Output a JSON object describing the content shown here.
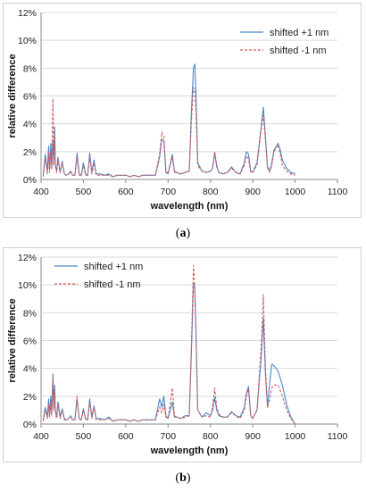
{
  "captions": [
    {
      "open": "(",
      "letter": "a",
      "close": ")"
    },
    {
      "open": "(",
      "letter": "b",
      "close": ")"
    }
  ],
  "chart_data": [
    {
      "type": "line",
      "xlabel": "wavelength (nm)",
      "ylabel": "relative difference",
      "xlim": [
        400,
        1100
      ],
      "ylim": [
        0,
        12
      ],
      "xticks": [
        "400",
        "500",
        "600",
        "700",
        "800",
        "900",
        "1000",
        "1100"
      ],
      "yticks": [
        "0%",
        "2%",
        "4%",
        "6%",
        "8%",
        "10%",
        "12%"
      ],
      "grid": "horizontal",
      "legend_position": "top-right",
      "series": [
        {
          "name": "shifted +1 nm",
          "color": "#4a86c5",
          "style": "solid",
          "x": [
            405,
            410,
            415,
            418,
            420,
            423,
            425,
            428,
            430,
            432,
            434,
            437,
            440,
            445,
            450,
            455,
            460,
            465,
            470,
            475,
            480,
            485,
            490,
            495,
            500,
            505,
            510,
            515,
            520,
            525,
            530,
            540,
            550,
            560,
            570,
            580,
            590,
            600,
            610,
            620,
            630,
            640,
            650,
            660,
            670,
            680,
            685,
            690,
            695,
            700,
            710,
            715,
            720,
            730,
            740,
            750,
            755,
            760,
            763,
            766,
            770,
            780,
            790,
            800,
            805,
            810,
            815,
            820,
            830,
            840,
            850,
            860,
            870,
            880,
            885,
            890,
            895,
            900,
            910,
            920,
            925,
            930,
            935,
            940,
            945,
            950,
            960,
            965,
            970,
            980,
            990,
            1000
          ],
          "y": [
            0.3,
            1.8,
            0.6,
            2.4,
            0.7,
            2.6,
            0.9,
            2.8,
            1.2,
            3.8,
            1.0,
            0.6,
            1.6,
            0.5,
            1.3,
            0.4,
            0.3,
            0.4,
            0.6,
            0.3,
            0.3,
            1.9,
            0.4,
            0.3,
            1.2,
            0.4,
            0.3,
            1.9,
            0.5,
            1.4,
            0.4,
            0.4,
            0.3,
            0.4,
            0.2,
            0.3,
            0.3,
            0.3,
            0.2,
            0.3,
            0.2,
            0.3,
            0.3,
            0.3,
            0.3,
            1.6,
            2.9,
            2.8,
            0.5,
            0.4,
            1.8,
            0.6,
            0.5,
            0.4,
            0.5,
            0.6,
            4.8,
            8.0,
            8.3,
            6.0,
            1.2,
            0.6,
            0.5,
            0.6,
            0.8,
            1.9,
            0.9,
            0.5,
            0.4,
            0.5,
            0.9,
            0.5,
            0.4,
            1.2,
            2.0,
            1.8,
            0.6,
            0.5,
            1.2,
            3.8,
            5.2,
            3.0,
            0.9,
            0.6,
            1.2,
            2.1,
            2.6,
            2.1,
            1.4,
            0.8,
            0.5,
            0.4
          ]
        },
        {
          "name": "shifted -1 nm",
          "color": "#d65a5a",
          "style": "dashed",
          "x": [
            405,
            410,
            415,
            418,
            420,
            423,
            425,
            428,
            430,
            432,
            434,
            437,
            440,
            445,
            450,
            455,
            460,
            465,
            470,
            475,
            480,
            485,
            490,
            495,
            500,
            505,
            510,
            515,
            520,
            525,
            530,
            540,
            550,
            560,
            570,
            580,
            590,
            600,
            610,
            620,
            630,
            640,
            650,
            660,
            670,
            680,
            685,
            690,
            695,
            700,
            710,
            715,
            720,
            730,
            740,
            750,
            755,
            760,
            763,
            766,
            770,
            780,
            790,
            800,
            805,
            810,
            815,
            820,
            830,
            840,
            850,
            860,
            870,
            880,
            885,
            890,
            895,
            900,
            910,
            920,
            925,
            930,
            935,
            940,
            945,
            950,
            960,
            965,
            970,
            980,
            990,
            1000
          ],
          "y": [
            0.2,
            1.5,
            0.4,
            2.0,
            0.5,
            1.8,
            0.7,
            5.8,
            1.0,
            3.3,
            0.9,
            0.5,
            1.4,
            0.5,
            1.2,
            0.4,
            0.3,
            0.4,
            0.5,
            0.3,
            0.3,
            1.6,
            0.3,
            0.3,
            1.0,
            0.3,
            0.3,
            1.6,
            0.4,
            1.2,
            0.3,
            0.3,
            0.3,
            0.3,
            0.2,
            0.3,
            0.3,
            0.3,
            0.2,
            0.3,
            0.2,
            0.3,
            0.3,
            0.3,
            0.3,
            1.8,
            3.4,
            3.1,
            0.6,
            0.4,
            1.6,
            0.5,
            0.5,
            0.4,
            0.5,
            0.6,
            4.2,
            6.6,
            6.5,
            4.8,
            1.0,
            0.6,
            0.5,
            0.6,
            0.8,
            2.0,
            1.0,
            0.5,
            0.4,
            0.5,
            0.8,
            0.5,
            0.4,
            1.0,
            1.7,
            1.5,
            0.5,
            0.5,
            1.0,
            3.6,
            4.6,
            2.8,
            0.8,
            0.5,
            1.0,
            2.0,
            2.5,
            1.8,
            1.0,
            0.6,
            0.4,
            0.3
          ]
        }
      ]
    },
    {
      "type": "line",
      "xlabel": "wavelength (nm)",
      "ylabel": "relative difference",
      "xlim": [
        400,
        1100
      ],
      "ylim": [
        0,
        12
      ],
      "xticks": [
        "400",
        "500",
        "600",
        "700",
        "800",
        "900",
        "1000",
        "1100"
      ],
      "yticks": [
        "0%",
        "2%",
        "4%",
        "6%",
        "8%",
        "10%",
        "12%"
      ],
      "grid": "horizontal",
      "legend_position": "top-left",
      "series": [
        {
          "name": "shifted +1 nm",
          "color": "#4a86c5",
          "style": "solid",
          "x": [
            405,
            410,
            415,
            418,
            420,
            423,
            425,
            428,
            430,
            432,
            434,
            437,
            440,
            445,
            450,
            455,
            460,
            465,
            470,
            475,
            480,
            485,
            490,
            495,
            500,
            505,
            510,
            515,
            520,
            525,
            530,
            540,
            550,
            560,
            570,
            580,
            590,
            600,
            610,
            620,
            630,
            640,
            650,
            660,
            670,
            680,
            685,
            690,
            695,
            700,
            710,
            715,
            720,
            730,
            740,
            750,
            755,
            760,
            763,
            766,
            770,
            780,
            790,
            800,
            805,
            810,
            815,
            820,
            830,
            840,
            850,
            860,
            870,
            880,
            885,
            890,
            895,
            900,
            910,
            920,
            925,
            930,
            935,
            940,
            945,
            950,
            960,
            970,
            980,
            990,
            1000
          ],
          "y": [
            0.3,
            1.2,
            0.5,
            1.8,
            0.6,
            2.0,
            0.8,
            3.6,
            1.2,
            2.8,
            1.0,
            0.5,
            1.6,
            0.5,
            1.1,
            0.4,
            0.3,
            0.4,
            0.6,
            0.3,
            0.3,
            1.8,
            0.4,
            0.3,
            1.1,
            0.4,
            0.3,
            1.8,
            0.5,
            1.3,
            0.4,
            0.4,
            0.3,
            0.5,
            0.2,
            0.3,
            0.3,
            0.3,
            0.2,
            0.3,
            0.2,
            0.3,
            0.3,
            0.3,
            0.3,
            1.8,
            1.2,
            2.0,
            0.6,
            0.4,
            1.6,
            0.5,
            0.5,
            0.4,
            0.6,
            0.6,
            5.2,
            10.1,
            9.8,
            6.5,
            1.0,
            0.5,
            0.8,
            0.6,
            1.0,
            1.9,
            1.0,
            0.6,
            0.5,
            0.5,
            0.9,
            0.6,
            0.5,
            1.2,
            2.2,
            2.7,
            0.6,
            0.4,
            1.0,
            4.8,
            7.6,
            3.5,
            1.2,
            3.0,
            4.3,
            4.2,
            3.8,
            2.8,
            1.4,
            0.5,
            0.0
          ]
        },
        {
          "name": "shifted -1 nm",
          "color": "#d65a5a",
          "style": "dashed",
          "x": [
            405,
            410,
            415,
            418,
            420,
            423,
            425,
            428,
            430,
            432,
            434,
            437,
            440,
            445,
            450,
            455,
            460,
            465,
            470,
            475,
            480,
            485,
            490,
            495,
            500,
            505,
            510,
            515,
            520,
            525,
            530,
            540,
            550,
            560,
            570,
            580,
            590,
            600,
            610,
            620,
            630,
            640,
            650,
            660,
            670,
            680,
            685,
            690,
            695,
            700,
            710,
            715,
            720,
            730,
            740,
            750,
            755,
            760,
            763,
            766,
            770,
            780,
            790,
            800,
            805,
            810,
            815,
            820,
            830,
            840,
            850,
            860,
            870,
            880,
            885,
            890,
            895,
            900,
            910,
            920,
            925,
            930,
            935,
            940,
            945,
            950,
            960,
            970,
            980,
            990,
            1000
          ],
          "y": [
            0.2,
            1.0,
            0.4,
            1.4,
            0.5,
            1.6,
            0.6,
            3.3,
            1.0,
            2.5,
            0.8,
            0.4,
            1.4,
            0.4,
            1.0,
            0.3,
            0.3,
            0.4,
            0.5,
            0.3,
            0.3,
            2.0,
            0.3,
            0.3,
            1.0,
            0.3,
            0.3,
            1.6,
            0.4,
            1.2,
            0.3,
            0.3,
            0.3,
            0.4,
            0.2,
            0.3,
            0.3,
            0.3,
            0.2,
            0.3,
            0.2,
            0.3,
            0.3,
            0.3,
            0.3,
            1.2,
            0.8,
            1.4,
            0.5,
            0.4,
            2.6,
            0.6,
            0.5,
            0.4,
            0.5,
            0.6,
            5.6,
            11.4,
            10.0,
            6.2,
            1.0,
            0.5,
            0.6,
            0.5,
            1.2,
            2.6,
            1.2,
            0.7,
            0.5,
            0.5,
            0.8,
            0.6,
            0.4,
            1.0,
            2.0,
            2.5,
            0.6,
            0.4,
            1.0,
            5.6,
            9.3,
            4.0,
            1.2,
            1.8,
            2.6,
            2.8,
            2.8,
            2.0,
            1.0,
            0.4,
            0.0
          ]
        }
      ]
    }
  ]
}
